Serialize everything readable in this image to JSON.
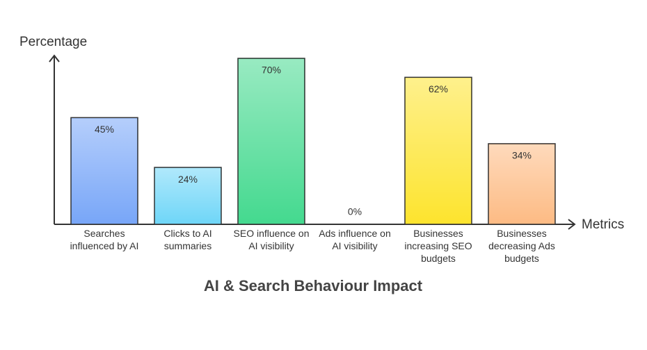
{
  "chart_data": {
    "type": "bar",
    "title": "AI & Search Behaviour Impact",
    "y_label": "Percentage",
    "x_label": "Metrics",
    "categories": [
      "Searches influenced by AI",
      "Clicks to AI summaries",
      "SEO influence on AI visibility",
      "Ads influence on AI visibility",
      "Businesses increasing SEO budgets",
      "Businesses decreasing Ads budgets"
    ],
    "values": [
      45,
      24,
      70,
      0,
      62,
      34
    ],
    "value_labels": [
      "45%",
      "24%",
      "70%",
      "0%",
      "62%",
      "34%"
    ],
    "colors": [
      "#78a6f8",
      "#6fd6f8",
      "#44d98f",
      "#f7d84a",
      "#fde42e",
      "#fdbb84"
    ],
    "ylim": [
      0,
      70
    ]
  }
}
